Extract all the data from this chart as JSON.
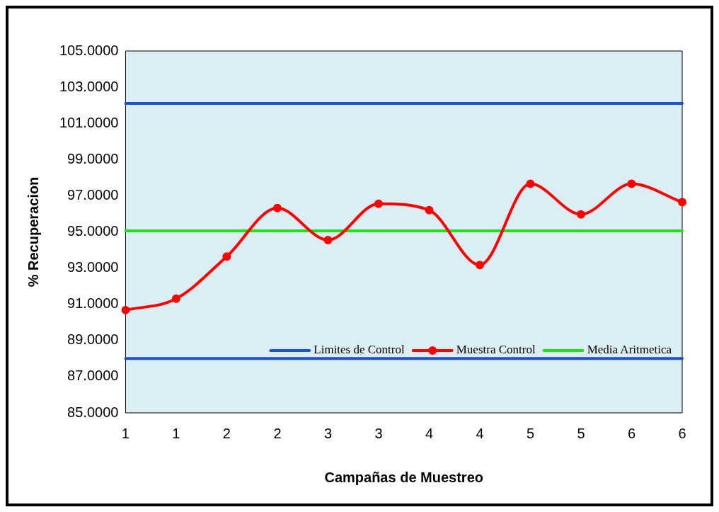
{
  "chart_data": {
    "type": "line",
    "xlabel": "Campañas de Muestreo",
    "ylabel": "% Recuperacion",
    "categories": [
      "1",
      "1",
      "2",
      "2",
      "3",
      "3",
      "4",
      "4",
      "5",
      "5",
      "6",
      "6"
    ],
    "series": [
      {
        "name": "Limites de Control",
        "color": "#1f4fd1",
        "marker": "none",
        "values": [
          102.1,
          102.1,
          102.1,
          102.1,
          102.1,
          102.1,
          102.1,
          102.1,
          102.1,
          102.1,
          102.1,
          102.1
        ]
      },
      {
        "color": "#1f4fd1",
        "marker": "none",
        "values": [
          88,
          88,
          88,
          88,
          88,
          88,
          88,
          88,
          88,
          88,
          88,
          88
        ]
      },
      {
        "name": "Muestra Control",
        "color": "#ff0000",
        "marker": "circle",
        "values": [
          90.68,
          91.31,
          93.64,
          96.32,
          94.55,
          96.56,
          96.2,
          93.17,
          97.66,
          95.97,
          97.66,
          96.64
        ]
      },
      {
        "name": "Media Aritmetica",
        "color": "#22e01a",
        "marker": "none",
        "values": [
          95.06,
          95.06,
          95.06,
          95.06,
          95.06,
          95.06,
          95.06,
          95.06,
          95.06,
          95.06,
          95.06,
          95.06
        ]
      }
    ],
    "ylim": [
      85,
      105
    ],
    "yticks": [
      {
        "value": 85,
        "label": "85.0000"
      },
      {
        "value": 87,
        "label": "87.0000"
      },
      {
        "value": 89,
        "label": "89.0000"
      },
      {
        "value": 91,
        "label": "91.0000"
      },
      {
        "value": 93,
        "label": "93.0000"
      },
      {
        "value": 95,
        "label": "95.0000"
      },
      {
        "value": 97,
        "label": "97.0000"
      },
      {
        "value": 99,
        "label": "99.0000"
      },
      {
        "value": 101,
        "label": "101.0000"
      },
      {
        "value": 103,
        "label": "103.0000"
      },
      {
        "value": 105,
        "label": "105.0000"
      }
    ],
    "grid": false,
    "legend": "bottom right",
    "line_style": "solid"
  }
}
